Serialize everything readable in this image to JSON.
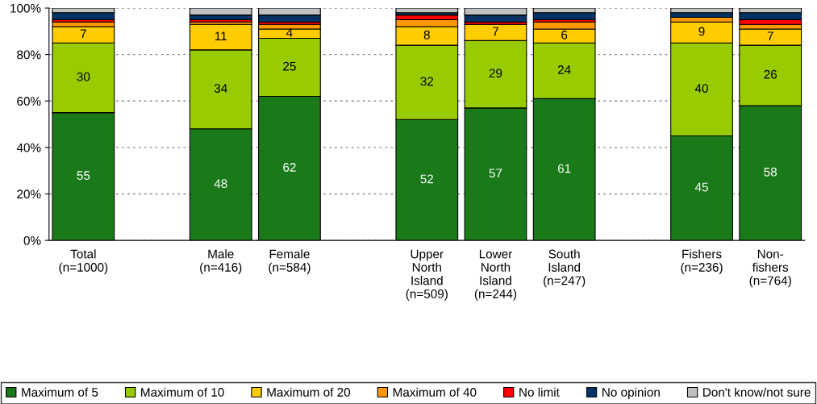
{
  "chart_data": {
    "type": "bar",
    "stacked": true,
    "categories": [
      "Total\n(n=1000)",
      null,
      "Male\n(n=416)",
      "Female\n(n=584)",
      null,
      "Upper\nNorth\nIsland\n(n=509)",
      "Lower\nNorth\nIsland\n(n=244)",
      "South\nIsland\n(n=247)",
      null,
      "Fishers\n(n=236)",
      "Non-\nfishers\n(n=764)"
    ],
    "series": [
      {
        "name": "Maximum of 5",
        "color": "#1a7a1a",
        "values": [
          55,
          null,
          48,
          62,
          null,
          52,
          57,
          61,
          null,
          45,
          58
        ],
        "value_labels": [
          "55",
          null,
          "48",
          "62",
          null,
          "52",
          "57",
          "61",
          null,
          "45",
          "58"
        ]
      },
      {
        "name": "Maximum of 10",
        "color": "#99cc00",
        "values": [
          30,
          null,
          34,
          25,
          null,
          32,
          29,
          24,
          null,
          40,
          26
        ],
        "value_labels": [
          "30",
          null,
          "34",
          "25",
          null,
          "32",
          "29",
          "24",
          null,
          "40",
          "26"
        ]
      },
      {
        "name": "Maximum of 20",
        "color": "#ffcc00",
        "values": [
          7,
          null,
          11,
          4,
          null,
          8,
          7,
          6,
          null,
          9,
          7
        ],
        "value_labels": [
          "7",
          null,
          "11",
          "4",
          null,
          "8",
          "7",
          "6",
          null,
          "9",
          "7"
        ]
      },
      {
        "name": "Maximum of 40",
        "color": "#ff9900",
        "values": [
          2,
          null,
          1,
          2,
          null,
          3,
          0,
          3,
          null,
          2,
          2
        ]
      },
      {
        "name": "No limit",
        "color": "#ff0000",
        "values": [
          1,
          null,
          1,
          1,
          null,
          2,
          1,
          1,
          null,
          0,
          2
        ]
      },
      {
        "name": "No opinion",
        "color": "#003366",
        "values": [
          3,
          null,
          2,
          3,
          null,
          1,
          3,
          3,
          null,
          2,
          3
        ]
      },
      {
        "name": "Don't know/not sure",
        "color": "#c0c0c0",
        "values": [
          2,
          null,
          3,
          3,
          null,
          2,
          3,
          2,
          null,
          2,
          2
        ]
      }
    ],
    "ylim": [
      0,
      100
    ],
    "yticks": [
      {
        "value": 0,
        "label": "0%"
      },
      {
        "value": 20,
        "label": "20%"
      },
      {
        "value": 40,
        "label": "40%"
      },
      {
        "value": 60,
        "label": "60%"
      },
      {
        "value": 80,
        "label": "80%"
      },
      {
        "value": 100,
        "label": "100%"
      }
    ],
    "grid": "y",
    "legend": "bottom"
  }
}
